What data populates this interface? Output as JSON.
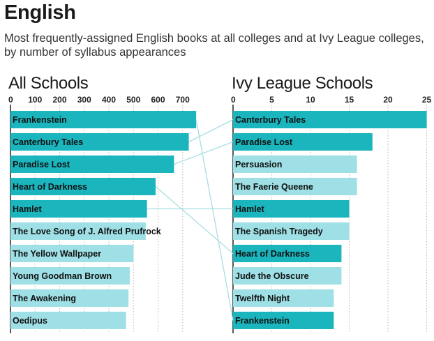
{
  "header": {
    "title": "English",
    "subtitle": "Most frequently-assigned English books at all colleges and at Ivy League colleges, by number of syllabus appearances"
  },
  "colors": {
    "highlight": "#1ab5bd",
    "normal": "#9ee0e6",
    "connector": "#a9dde2",
    "grid": "#b5b5b5"
  },
  "chart_data": [
    {
      "type": "bar",
      "orientation": "horizontal",
      "title": "All Schools",
      "xlim": [
        0,
        750
      ],
      "ticks": [
        0,
        100,
        200,
        300,
        400,
        500,
        600,
        700
      ],
      "categories": [
        "Frankenstein",
        "Canterbury Tales",
        "Paradise Lost",
        "Heart of Darkness",
        "Hamlet",
        "The Love Song of J. Alfred Prufrock",
        "The Yellow Wallpaper",
        "Young Goodman Brown",
        "The Awakening",
        "Oedipus"
      ],
      "values": [
        755,
        725,
        665,
        590,
        555,
        550,
        500,
        485,
        480,
        470
      ],
      "highlighted": [
        true,
        true,
        true,
        true,
        true,
        false,
        false,
        false,
        false,
        false
      ]
    },
    {
      "type": "bar",
      "orientation": "horizontal",
      "title": "Ivy League Schools",
      "xlim": [
        0,
        25
      ],
      "ticks": [
        0,
        5,
        10,
        15,
        20,
        25
      ],
      "categories": [
        "Canterbury Tales",
        "Paradise Lost",
        "Persuasion",
        "The Faerie Queene",
        "Hamlet",
        "The Spanish Tragedy",
        "Heart of Darkness",
        "Jude the Obscure",
        "Twelfth Night",
        "Frankenstein"
      ],
      "values": [
        25,
        18,
        16,
        16,
        15,
        15,
        14,
        14,
        13,
        13
      ],
      "highlighted": [
        true,
        true,
        false,
        false,
        true,
        false,
        true,
        false,
        false,
        true
      ]
    }
  ]
}
